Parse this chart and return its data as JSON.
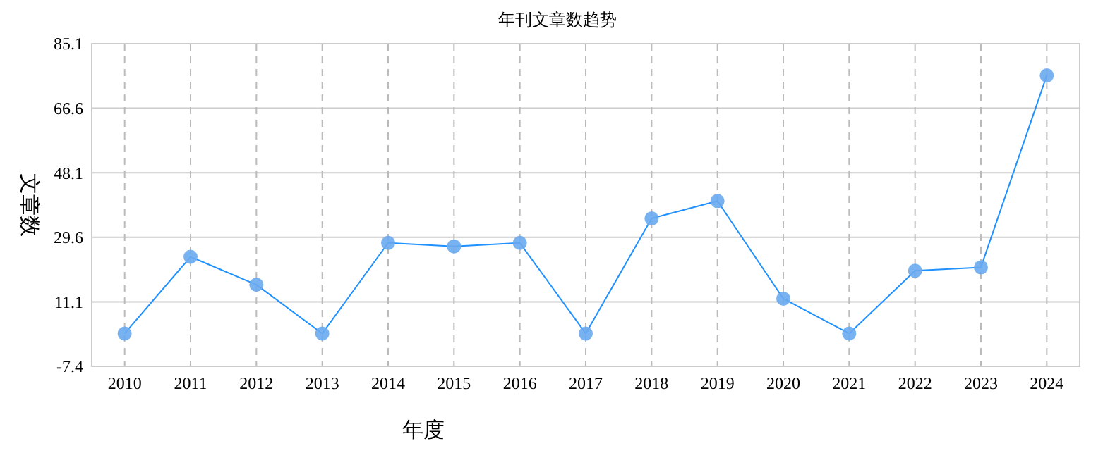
{
  "chart_data": {
    "type": "line",
    "title": "年刊文章数趋势",
    "xlabel": "年度",
    "ylabel": "文章数",
    "categories": [
      "2010",
      "2011",
      "2012",
      "2013",
      "2014",
      "2015",
      "2016",
      "2017",
      "2018",
      "2019",
      "2020",
      "2021",
      "2022",
      "2023",
      "2024"
    ],
    "series": [
      {
        "color": "#1e90ff",
        "values": [
          2,
          24,
          16,
          2,
          28,
          27,
          28,
          2,
          35,
          40,
          12,
          2,
          20,
          21,
          76
        ]
      }
    ],
    "ylim": [
      -7.4,
      85.1
    ],
    "yticks": [
      -7.4,
      11.1,
      29.6,
      48.1,
      66.6,
      85.1
    ],
    "grid": true,
    "marker": "circle",
    "line_style": "solid"
  }
}
